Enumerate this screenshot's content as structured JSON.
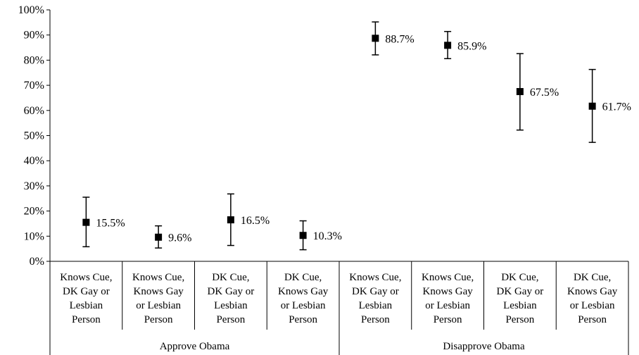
{
  "chart_data": {
    "type": "scatter",
    "title": "",
    "xlabel": "",
    "ylabel": "",
    "ylim": [
      0,
      100
    ],
    "y_ticks": [
      "0%",
      "10%",
      "20%",
      "30%",
      "40%",
      "50%",
      "60%",
      "70%",
      "80%",
      "90%",
      "100%"
    ],
    "grid": false,
    "legend": "none",
    "categories": [
      [
        "Knows Cue,",
        "DK Gay or",
        "Lesbian",
        "Person"
      ],
      [
        "Knows Cue,",
        "Knows Gay",
        "or Lesbian",
        "Person"
      ],
      [
        "DK Cue,",
        "DK Gay or",
        "Lesbian",
        "Person"
      ],
      [
        "DK Cue,",
        "Knows Gay",
        "or Lesbian",
        "Person"
      ],
      [
        "Knows Cue,",
        "DK Gay or",
        "Lesbian",
        "Person"
      ],
      [
        "Knows Cue,",
        "Knows Gay",
        "or Lesbian",
        "Person"
      ],
      [
        "DK Cue,",
        "DK Gay or",
        "Lesbian",
        "Person"
      ],
      [
        "DK Cue,",
        "Knows Gay",
        "or Lesbian",
        "Person"
      ]
    ],
    "groups": [
      {
        "label": "Approve Obama",
        "count": 4
      },
      {
        "label": "Disapprove Obama",
        "count": 4
      }
    ],
    "values": [
      15.5,
      9.6,
      16.5,
      10.3,
      88.7,
      85.9,
      67.5,
      61.7
    ],
    "value_labels": [
      "15.5%",
      "9.6%",
      "16.5%",
      "10.3%",
      "88.7%",
      "85.9%",
      "67.5%",
      "61.7%"
    ],
    "error_low": [
      5.8,
      5.3,
      6.3,
      4.6,
      82.1,
      80.6,
      52.2,
      47.3
    ],
    "error_high": [
      25.5,
      14.1,
      26.8,
      16.1,
      95.2,
      91.4,
      82.6,
      76.3
    ],
    "colors": {
      "marker": "#000000",
      "axis": "#000000"
    }
  }
}
